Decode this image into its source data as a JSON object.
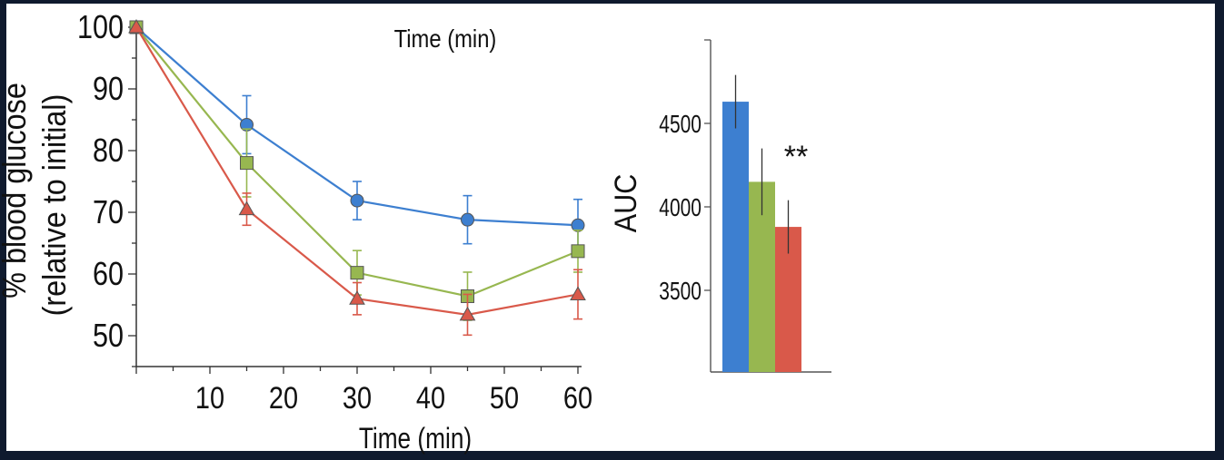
{
  "frame_color": "#0f1a2e",
  "top_label": "Time (min)",
  "chart_data": [
    {
      "type": "line",
      "x": [
        0,
        15,
        30,
        45,
        60
      ],
      "xlabel": "Time (min)",
      "ylabel_lines": [
        "% blood glucose",
        "(relative to initial)"
      ],
      "xlim": [
        0,
        60
      ],
      "ylim": [
        45,
        100
      ],
      "xticks": [
        10,
        20,
        30,
        40,
        50,
        60
      ],
      "yticks": [
        50,
        60,
        70,
        80,
        90,
        100
      ],
      "grid": false,
      "series": [
        {
          "color": "#3d7fd0",
          "marker": "circle",
          "values": [
            100,
            84.2,
            71.9,
            68.8,
            67.9
          ],
          "errors": [
            0,
            4.7,
            3.1,
            3.9,
            4.2
          ]
        },
        {
          "color": "#97b750",
          "marker": "square",
          "values": [
            100,
            78.0,
            60.2,
            56.4,
            63.7
          ],
          "errors": [
            0,
            5.5,
            3.6,
            3.9,
            3.4
          ]
        },
        {
          "color": "#d9594a",
          "marker": "triangle",
          "values": [
            100,
            70.5,
            56.0,
            53.4,
            56.7
          ],
          "errors": [
            0,
            2.6,
            2.6,
            3.3,
            4.0
          ]
        }
      ]
    },
    {
      "type": "bar",
      "categories": [
        "",
        "",
        ""
      ],
      "ylabel": "AUC",
      "ylim": [
        3000,
        5000
      ],
      "yticks": [
        3500,
        4000,
        4500
      ],
      "values": [
        4630,
        4150,
        3880
      ],
      "errors": [
        160,
        200,
        160
      ],
      "colors": [
        "#3d7fd0",
        "#97b750",
        "#d9594a"
      ],
      "annotation": "**"
    }
  ]
}
